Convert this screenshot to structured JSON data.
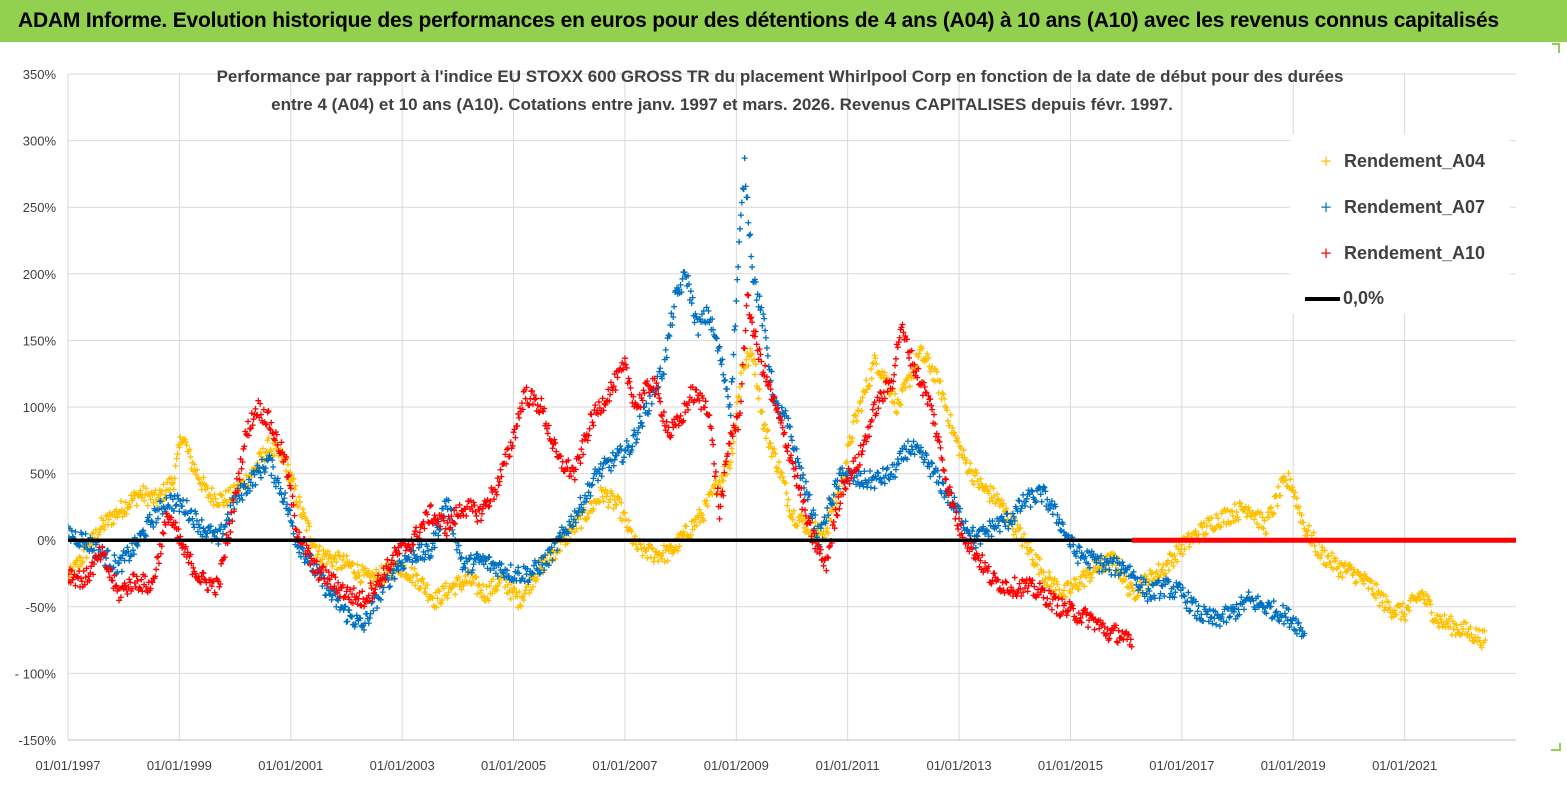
{
  "header": {
    "title": "ADAM Informe. Evolution historique des performances en euros pour des détentions de 4 ans (A04) à 10 ans (A10) avec les revenus connus capitalisés"
  },
  "chart_data": {
    "type": "scatter",
    "title_line1": "Performance par rapport à l'indice EU STOXX 600 GROSS TR  du placement Whirlpool Corp en fonction de la date de début pour des durées",
    "title_line2": "entre 4 (A04) et 10 ans (A10). Cotations entre janv. 1997 et mars. 2026. Revenus CAPITALISES depuis févr. 1997.",
    "xlabel": "",
    "ylabel": "",
    "ylim": [
      -150,
      350
    ],
    "xlim": [
      1997.0,
      2023.0
    ],
    "y_ticks": [
      350,
      300,
      250,
      200,
      150,
      100,
      50,
      0,
      -50,
      -100,
      -150
    ],
    "y_tick_labels": [
      "350%",
      "300%",
      "250%",
      "200%",
      "150%",
      "100%",
      "50%",
      "0%",
      "-50%",
      "- 100%",
      "-150%"
    ],
    "x_ticks": [
      1997,
      1999,
      2001,
      2003,
      2005,
      2007,
      2009,
      2011,
      2013,
      2015,
      2017,
      2019,
      2021
    ],
    "x_tick_labels": [
      "01/01/1997",
      "01/01/1999",
      "01/01/2001",
      "01/01/2003",
      "01/01/2005",
      "01/01/2007",
      "01/01/2009",
      "01/01/2011",
      "01/01/2013",
      "01/01/2015",
      "01/01/2017",
      "01/01/2019",
      "01/01/2021"
    ],
    "grid": true,
    "legend_position": "top-right",
    "legend": [
      {
        "label": "Rendement_A04",
        "color": "#ffc000",
        "marker": "+"
      },
      {
        "label": "Rendement_A07",
        "color": "#0070c0",
        "marker": "+"
      },
      {
        "label": "Rendement_A10",
        "color": "#ff0000",
        "marker": "+"
      },
      {
        "label": "0,0%",
        "color": "#000000",
        "marker": "line"
      }
    ],
    "series": [
      {
        "name": "Rendement_A04",
        "color": "#ffc000",
        "x": [
          1997.0,
          1997.3,
          1997.6,
          1998.0,
          1998.3,
          1998.6,
          1998.9,
          1999.05,
          1999.2,
          1999.5,
          1999.8,
          2000.0,
          2000.3,
          2000.6,
          2000.9,
          2001.2,
          2001.5,
          2001.8,
          2002.1,
          2002.4,
          2002.7,
          2003.0,
          2003.3,
          2003.6,
          2003.9,
          2004.2,
          2004.5,
          2004.8,
          2005.1,
          2005.4,
          2005.7,
          2006.0,
          2006.3,
          2006.6,
          2006.9,
          2007.2,
          2007.5,
          2007.8,
          2008.1,
          2008.4,
          2008.7,
          2008.9,
          2009.1,
          2009.3,
          2009.5,
          2009.8,
          2010.0,
          2010.3,
          2010.6,
          2010.9,
          2011.1,
          2011.3,
          2011.5,
          2011.7,
          2011.9,
          2012.1,
          2012.3,
          2012.5,
          2012.7,
          2012.9,
          2013.1,
          2013.4,
          2013.7,
          2014.0,
          2014.3,
          2014.6,
          2014.9,
          2015.2,
          2015.5,
          2015.8,
          2016.1,
          2016.4,
          2016.7,
          2017.0,
          2017.3,
          2017.6,
          2017.9,
          2018.2,
          2018.5,
          2018.8,
          2018.95,
          2019.2,
          2019.5,
          2019.8,
          2020.1,
          2020.4,
          2020.7,
          2021.0,
          2021.3,
          2021.6,
          2021.9,
          2022.2,
          2022.45
        ],
        "y": [
          -30,
          -10,
          10,
          25,
          35,
          30,
          45,
          80,
          60,
          35,
          30,
          35,
          50,
          70,
          60,
          20,
          -10,
          -15,
          -20,
          -30,
          -25,
          -20,
          -30,
          -45,
          -35,
          -30,
          -40,
          -30,
          -45,
          -25,
          -10,
          5,
          20,
          35,
          25,
          -5,
          -10,
          -10,
          5,
          20,
          45,
          60,
          130,
          140,
          85,
          50,
          20,
          10,
          5,
          45,
          85,
          110,
          135,
          120,
          100,
          120,
          140,
          130,
          110,
          80,
          60,
          40,
          30,
          10,
          -10,
          -30,
          -40,
          -30,
          -20,
          -15,
          -40,
          -30,
          -20,
          -5,
          5,
          15,
          20,
          25,
          10,
          40,
          45,
          10,
          -10,
          -20,
          -25,
          -35,
          -50,
          -55,
          -40,
          -60,
          -65,
          -70,
          -75
        ]
      },
      {
        "name": "Rendement_A07",
        "color": "#0070c0",
        "x": [
          1997.0,
          1997.3,
          1997.6,
          1997.9,
          1998.2,
          1998.5,
          1998.8,
          1999.1,
          1999.4,
          1999.7,
          2000.0,
          2000.3,
          2000.6,
          2000.9,
          2001.1,
          2001.4,
          2001.7,
          2002.0,
          2002.3,
          2002.6,
          2002.9,
          2003.2,
          2003.5,
          2003.8,
          2004.1,
          2004.4,
          2004.7,
          2005.0,
          2005.3,
          2005.6,
          2005.9,
          2006.2,
          2006.5,
          2006.8,
          2007.1,
          2007.4,
          2007.7,
          2007.9,
          2008.1,
          2008.3,
          2008.5,
          2008.7,
          2008.9,
          2009.05,
          2009.15,
          2009.3,
          2009.5,
          2009.7,
          2009.9,
          2010.1,
          2010.3,
          2010.5,
          2010.7,
          2010.9,
          2011.2,
          2011.5,
          2011.8,
          2012.1,
          2012.4,
          2012.7,
          2013.0,
          2013.3,
          2013.6,
          2013.9,
          2014.2,
          2014.5,
          2014.8,
          2015.1,
          2015.4,
          2015.7,
          2016.0,
          2016.2,
          2016.4,
          2016.7,
          2017.0,
          2017.3,
          2017.6,
          2017.9,
          2018.2,
          2018.5,
          2018.8,
          2019.0,
          2019.2
        ],
        "y": [
          5,
          0,
          -10,
          -20,
          -5,
          15,
          30,
          25,
          10,
          0,
          30,
          45,
          60,
          30,
          0,
          -20,
          -40,
          -55,
          -65,
          -40,
          -20,
          -10,
          -10,
          30,
          -20,
          -15,
          -20,
          -25,
          -25,
          -15,
          5,
          25,
          50,
          60,
          70,
          100,
          130,
          180,
          200,
          160,
          170,
          140,
          100,
          220,
          280,
          200,
          160,
          100,
          90,
          60,
          30,
          0,
          30,
          50,
          45,
          45,
          50,
          70,
          60,
          40,
          20,
          0,
          10,
          15,
          30,
          35,
          15,
          -10,
          -15,
          -20,
          -20,
          -30,
          -40,
          -35,
          -40,
          -55,
          -60,
          -55,
          -45,
          -50,
          -55,
          -60,
          -70
        ]
      },
      {
        "name": "Rendement_A10",
        "color": "#ff0000",
        "x": [
          1997.0,
          1997.3,
          1997.6,
          1997.9,
          1998.2,
          1998.5,
          1998.8,
          1999.1,
          1999.4,
          1999.7,
          1999.95,
          2000.2,
          2000.4,
          2000.6,
          2000.9,
          2001.1,
          2001.4,
          2001.7,
          2002.0,
          2002.3,
          2002.6,
          2002.9,
          2003.2,
          2003.5,
          2003.8,
          2004.1,
          2004.4,
          2004.7,
          2004.95,
          2005.2,
          2005.5,
          2005.8,
          2006.1,
          2006.4,
          2006.7,
          2007.0,
          2007.2,
          2007.5,
          2007.8,
          2008.0,
          2008.2,
          2008.5,
          2008.7,
          2008.9,
          2009.05,
          2009.2,
          2009.4,
          2009.7,
          2010.0,
          2010.3,
          2010.6,
          2010.9,
          2011.2,
          2011.5,
          2011.8,
          2011.95,
          2012.2,
          2012.5,
          2012.8,
          2013.0,
          2013.3,
          2013.6,
          2013.9,
          2014.2,
          2014.5,
          2014.8,
          2015.1,
          2015.4,
          2015.7,
          2015.9,
          2016.1
        ],
        "y": [
          -25,
          -30,
          -10,
          -40,
          -30,
          -35,
          20,
          -10,
          -30,
          -35,
          20,
          80,
          100,
          90,
          60,
          10,
          -20,
          -30,
          -40,
          -45,
          -30,
          -10,
          0,
          20,
          10,
          25,
          20,
          40,
          70,
          110,
          100,
          60,
          50,
          90,
          110,
          130,
          100,
          120,
          80,
          90,
          110,
          100,
          20,
          80,
          90,
          180,
          140,
          100,
          60,
          10,
          -20,
          40,
          60,
          100,
          120,
          160,
          130,
          100,
          40,
          10,
          -10,
          -30,
          -35,
          -35,
          -40,
          -50,
          -55,
          -60,
          -70,
          -70,
          -80
        ]
      },
      {
        "name": "Rendement_A10 (zero segment)",
        "color": "#ff0000",
        "x": [
          2016.1,
          2023.0
        ],
        "y": [
          0,
          0
        ]
      }
    ]
  }
}
